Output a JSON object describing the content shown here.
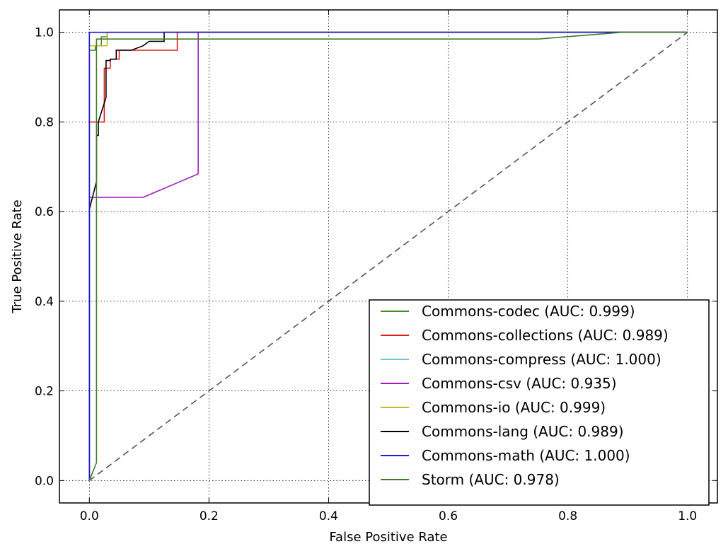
{
  "chart_data": {
    "type": "line",
    "title": "",
    "xlabel": "False Positive Rate",
    "ylabel": "True Positive Rate",
    "xlim": [
      -0.05,
      1.05
    ],
    "ylim": [
      -0.05,
      1.05
    ],
    "xticks": [
      0.0,
      0.2,
      0.4,
      0.6,
      0.8,
      1.0
    ],
    "yticks": [
      0.0,
      0.2,
      0.4,
      0.6,
      0.8,
      1.0
    ],
    "xtick_labels": [
      "0.0",
      "0.2",
      "0.4",
      "0.6",
      "0.8",
      "1.0"
    ],
    "ytick_labels": [
      "0.0",
      "0.2",
      "0.4",
      "0.6",
      "0.8",
      "1.0"
    ],
    "grid": true,
    "legend_position": "lower-right",
    "chance_line": {
      "x": [
        0,
        1
      ],
      "y": [
        0,
        1
      ],
      "color": "#555555",
      "style": "dashed"
    },
    "series": [
      {
        "name": "Commons-codec (AUC: 0.999)",
        "color": "#4a8a2a",
        "x": [
          0,
          0,
          0.01,
          0.01,
          0.02,
          0.02,
          0.03,
          0.03,
          1.0
        ],
        "y": [
          0,
          0.96,
          0.96,
          0.97,
          0.97,
          0.99,
          0.99,
          1.0,
          1.0
        ]
      },
      {
        "name": "Commons-collections (AUC: 0.989)",
        "color": "#e0201b",
        "x": [
          0,
          0,
          0.025,
          0.025,
          0.035,
          0.035,
          0.05,
          0.05,
          0.09,
          0.09,
          0.147,
          0.147,
          1.0
        ],
        "y": [
          0,
          0.8,
          0.8,
          0.92,
          0.92,
          0.94,
          0.94,
          0.96,
          0.96,
          0.96,
          0.96,
          1.0,
          1.0
        ]
      },
      {
        "name": "Commons-compress (AUC: 1.000)",
        "color": "#6ec5cf",
        "x": [
          0,
          0,
          1.0
        ],
        "y": [
          0,
          1.0,
          1.0
        ]
      },
      {
        "name": "Commons-csv (AUC: 0.935)",
        "color": "#a020c0",
        "x": [
          0,
          0,
          0.09,
          0.182,
          0.182,
          1.0
        ],
        "y": [
          0,
          0.632,
          0.632,
          0.684,
          1.0,
          1.0
        ]
      },
      {
        "name": "Commons-io (AUC: 0.999)",
        "color": "#c8b820",
        "x": [
          0,
          0,
          0.03,
          0.03,
          1.0
        ],
        "y": [
          0,
          0.97,
          0.97,
          1.0,
          1.0
        ]
      },
      {
        "name": "Commons-lang (AUC: 0.989)",
        "color": "#000000",
        "x": [
          0,
          0,
          0.012,
          0.012,
          0.015,
          0.015,
          0.028,
          0.028,
          0.035,
          0.035,
          0.045,
          0.045,
          0.07,
          0.09,
          0.1,
          0.125,
          0.125,
          1.0
        ],
        "y": [
          0,
          0.605,
          0.667,
          0.77,
          0.77,
          0.8,
          0.855,
          0.937,
          0.937,
          0.94,
          0.94,
          0.96,
          0.96,
          0.97,
          0.98,
          0.98,
          1.0,
          1.0
        ]
      },
      {
        "name": "Commons-math (AUC: 1.000)",
        "color": "#1a1ad8",
        "x": [
          0,
          0,
          1.0
        ],
        "y": [
          0,
          1.0,
          1.0
        ]
      },
      {
        "name": "Storm (AUC: 0.978)",
        "color": "#3f7a2a",
        "x": [
          0,
          0.012,
          0.012,
          0.03,
          0.75,
          0.89,
          1.0
        ],
        "y": [
          0,
          0.04,
          0.985,
          0.985,
          0.985,
          1.0,
          1.0
        ]
      }
    ]
  }
}
